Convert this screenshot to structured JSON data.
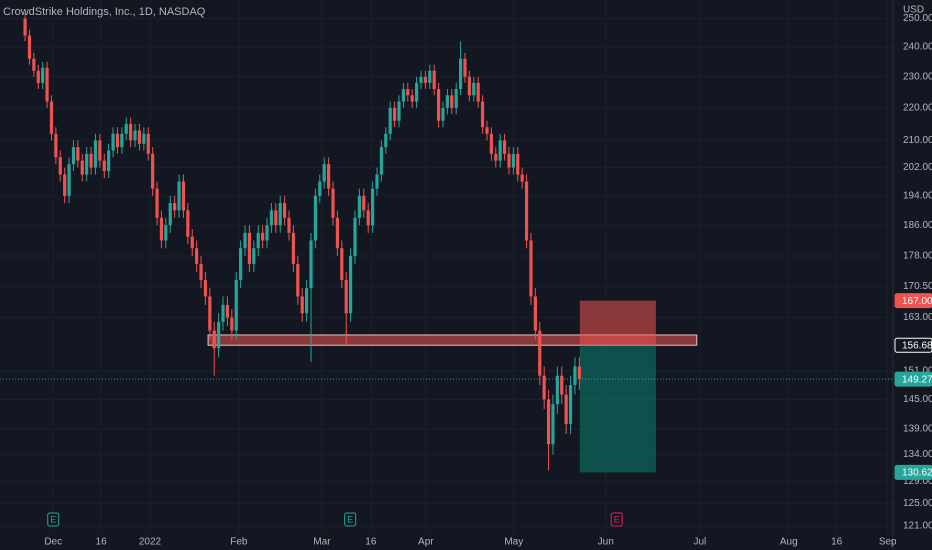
{
  "chart_data": {
    "type": "candlestick",
    "title": "CrowdStrike Holdings, Inc., 1D, NASDAQ",
    "currency": "USD",
    "up_color": "#26a69a",
    "down_color": "#ef5350",
    "log_scale": true,
    "grid": true,
    "ylim": [
      119.1,
      256.7
    ],
    "yticks": [
      {
        "value": 250,
        "label": "250.00"
      },
      {
        "value": 240,
        "label": "240.00"
      },
      {
        "value": 230,
        "label": "230.00"
      },
      {
        "value": 220,
        "label": "220.00"
      },
      {
        "value": 210,
        "label": "210.00"
      },
      {
        "value": 202,
        "label": "202.00"
      },
      {
        "value": 194,
        "label": "194.00"
      },
      {
        "value": 186,
        "label": "186.00"
      },
      {
        "value": 178,
        "label": "178.00"
      },
      {
        "value": 170.5,
        "label": "170.50"
      },
      {
        "value": 163,
        "label": "163.00"
      },
      {
        "value": 151,
        "label": "151.00"
      },
      {
        "value": 145,
        "label": "145.00"
      },
      {
        "value": 139,
        "label": "139.00"
      },
      {
        "value": 134,
        "label": "134.00"
      },
      {
        "value": 129,
        "label": "129.00"
      },
      {
        "value": 125,
        "label": "125.00"
      },
      {
        "value": 121,
        "label": "121.00"
      }
    ],
    "xlim": [
      -5.7,
      197.3
    ],
    "xticks": [
      {
        "value": 6.4,
        "label": "Dec"
      },
      {
        "value": 17.3,
        "label": "16"
      },
      {
        "value": 28.4,
        "label": "2022"
      },
      {
        "value": 48.6,
        "label": "Feb"
      },
      {
        "value": 67.5,
        "label": "Mar"
      },
      {
        "value": 78.6,
        "label": "16"
      },
      {
        "value": 91.1,
        "label": "Apr"
      },
      {
        "value": 111.1,
        "label": "May"
      },
      {
        "value": 132,
        "label": "Jun"
      },
      {
        "value": 153.4,
        "label": "Jul"
      },
      {
        "value": 173.6,
        "label": "Aug"
      },
      {
        "value": 184.5,
        "label": "16"
      },
      {
        "value": 196.1,
        "label": "Sep"
      }
    ],
    "open": [
      250,
      244,
      236,
      232,
      228,
      233,
      222,
      212,
      205,
      200,
      194,
      203,
      208,
      204,
      200,
      206,
      202,
      210,
      204,
      201,
      207,
      212,
      208,
      212,
      215,
      210,
      213,
      209,
      212,
      206,
      196,
      188,
      182,
      186,
      192,
      190,
      198,
      190,
      183,
      180,
      176,
      172,
      168,
      160,
      156,
      162,
      166,
      163,
      160,
      172,
      180,
      184,
      176,
      180,
      184,
      182,
      186,
      190,
      186,
      192,
      188,
      184,
      176,
      168,
      164,
      170,
      182,
      194,
      198,
      203,
      196,
      188,
      180,
      172,
      164,
      178,
      188,
      194,
      190,
      186,
      196,
      200,
      208,
      212,
      220,
      216,
      222,
      226,
      224,
      222,
      228,
      230,
      228,
      232,
      226,
      216,
      220,
      224,
      220,
      226,
      236,
      230,
      224,
      228,
      222,
      214,
      212,
      206,
      204,
      210,
      206,
      202,
      206,
      200,
      198,
      182,
      168,
      160,
      150,
      145,
      136,
      144,
      150,
      146,
      140,
      148,
      152
    ],
    "high": [
      252,
      246,
      238,
      234,
      235,
      235,
      224,
      214,
      207,
      202,
      205,
      210,
      210,
      206,
      208,
      208,
      212,
      212,
      206,
      209,
      214,
      214,
      214,
      217,
      217,
      215,
      215,
      214,
      214,
      208,
      198,
      190,
      188,
      194,
      194,
      200,
      200,
      192,
      185,
      182,
      178,
      174,
      170,
      162,
      164,
      168,
      168,
      165,
      174,
      182,
      186,
      186,
      182,
      186,
      186,
      188,
      192,
      192,
      194,
      194,
      190,
      186,
      178,
      170,
      172,
      184,
      196,
      200,
      205,
      205,
      198,
      190,
      182,
      174,
      180,
      190,
      196,
      196,
      192,
      198,
      202,
      210,
      214,
      222,
      222,
      224,
      228,
      228,
      226,
      230,
      232,
      232,
      234,
      234,
      228,
      222,
      226,
      226,
      228,
      242,
      238,
      232,
      230,
      230,
      224,
      216,
      214,
      208,
      212,
      212,
      208,
      208,
      208,
      202,
      200,
      184,
      170,
      162,
      152,
      147,
      146,
      152,
      152,
      148,
      150,
      154,
      154
    ],
    "low": [
      242,
      234,
      230,
      226,
      226,
      220,
      210,
      203,
      198,
      192,
      192,
      201,
      202,
      198,
      198,
      200,
      200,
      202,
      199,
      199,
      205,
      206,
      206,
      210,
      208,
      208,
      207,
      207,
      204,
      194,
      186,
      180,
      180,
      184,
      188,
      188,
      188,
      181,
      178,
      174,
      170,
      166,
      158,
      150,
      154,
      160,
      161,
      158,
      158,
      170,
      178,
      174,
      174,
      178,
      180,
      180,
      184,
      184,
      184,
      186,
      182,
      174,
      166,
      162,
      162,
      153,
      180,
      192,
      196,
      194,
      186,
      178,
      170,
      157,
      162,
      176,
      186,
      188,
      184,
      184,
      194,
      198,
      206,
      210,
      214,
      214,
      220,
      222,
      220,
      220,
      226,
      226,
      226,
      224,
      214,
      214,
      218,
      218,
      218,
      224,
      228,
      222,
      222,
      220,
      212,
      210,
      204,
      202,
      202,
      204,
      200,
      200,
      198,
      196,
      180,
      166,
      158,
      148,
      143,
      131,
      134,
      142,
      144,
      138,
      138,
      146,
      147
    ],
    "close": [
      244,
      236,
      232,
      228,
      233,
      222,
      212,
      205,
      200,
      194,
      203,
      208,
      204,
      200,
      206,
      202,
      210,
      204,
      201,
      207,
      212,
      208,
      212,
      215,
      210,
      213,
      209,
      212,
      206,
      196,
      188,
      182,
      186,
      192,
      190,
      198,
      190,
      183,
      180,
      176,
      172,
      168,
      160,
      156,
      162,
      166,
      163,
      160,
      172,
      180,
      184,
      176,
      180,
      184,
      182,
      186,
      190,
      186,
      192,
      188,
      184,
      176,
      168,
      164,
      170,
      182,
      194,
      198,
      203,
      196,
      188,
      180,
      172,
      164,
      178,
      188,
      194,
      190,
      186,
      196,
      200,
      208,
      212,
      220,
      216,
      222,
      226,
      224,
      222,
      228,
      230,
      228,
      232,
      226,
      216,
      220,
      224,
      220,
      226,
      236,
      230,
      224,
      228,
      222,
      214,
      212,
      206,
      204,
      210,
      206,
      202,
      206,
      200,
      198,
      182,
      168,
      160,
      150,
      145,
      136,
      144,
      150,
      146,
      140,
      148,
      152,
      149.27
    ],
    "zone": {
      "from": 41.6,
      "to": 152.7,
      "top": 159,
      "bottom": 156.68
    },
    "position": {
      "from": 126.1,
      "to": 143.4,
      "stop": 167,
      "entry": 156.68,
      "target": 130.62
    },
    "price_labels": [
      {
        "value": 167,
        "label": "167.00",
        "color": "#ef5350"
      },
      {
        "value": 156.68,
        "label": "156.68",
        "color": "#ffffff"
      },
      {
        "value": 149.27,
        "label": "149.27",
        "color": "#26a69a"
      },
      {
        "value": 130.62,
        "label": "130.62",
        "color": "#26a69a"
      }
    ],
    "current_price": 149.27,
    "events": [
      {
        "x": 6.4,
        "label": "E",
        "color": "#26a69a"
      },
      {
        "x": 73.9,
        "label": "E",
        "color": "#26a69a"
      },
      {
        "x": 134.5,
        "label": "E",
        "color": "#e91e63"
      }
    ]
  }
}
